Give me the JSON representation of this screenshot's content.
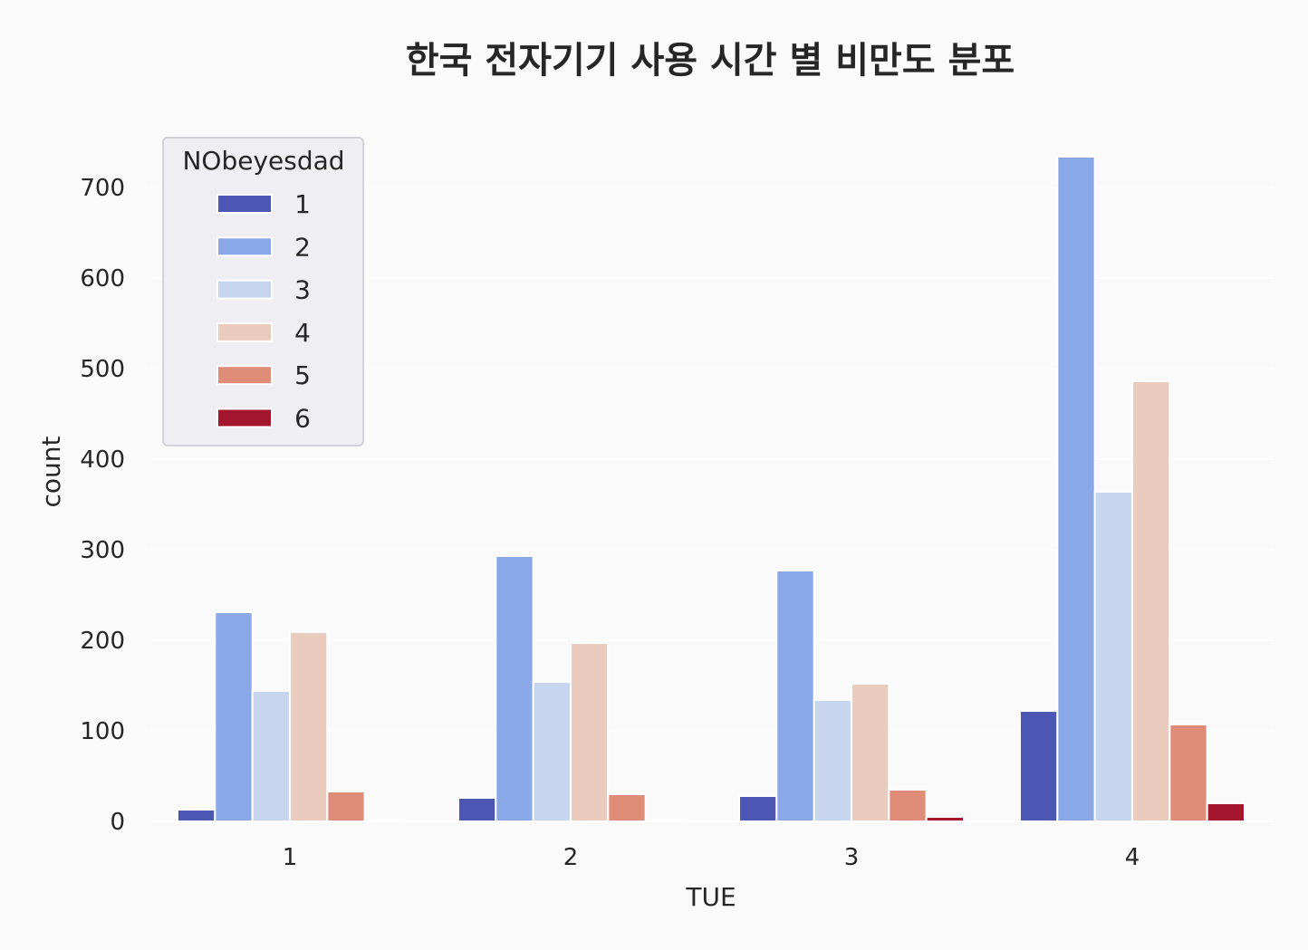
{
  "chart_data": {
    "type": "bar",
    "title": "한국 전자기기 사용 시간 별 비만도 분포",
    "xlabel": "TUE",
    "ylabel": "count",
    "categories": [
      "1",
      "2",
      "3",
      "4"
    ],
    "ylim": [
      0,
      772
    ],
    "yticks": [
      "0",
      "100",
      "200",
      "300",
      "400",
      "500",
      "600",
      "700"
    ],
    "grid": true,
    "legend": {
      "title": "NObeyesdad",
      "placement": "top-left"
    },
    "series": [
      {
        "name": "1",
        "color": "#4b57b3",
        "values": [
          13,
          26,
          28,
          122
        ]
      },
      {
        "name": "2",
        "color": "#8aa7e7",
        "values": [
          231,
          293,
          277,
          734
        ]
      },
      {
        "name": "3",
        "color": "#c8d5ee",
        "values": [
          144,
          154,
          134,
          364
        ]
      },
      {
        "name": "4",
        "color": "#eaccbf",
        "values": [
          209,
          197,
          152,
          486
        ]
      },
      {
        "name": "5",
        "color": "#df8d78",
        "values": [
          33,
          30,
          35,
          107
        ]
      },
      {
        "name": "6",
        "color": "#a4152e",
        "values": [
          2,
          2,
          5,
          20
        ]
      }
    ]
  }
}
